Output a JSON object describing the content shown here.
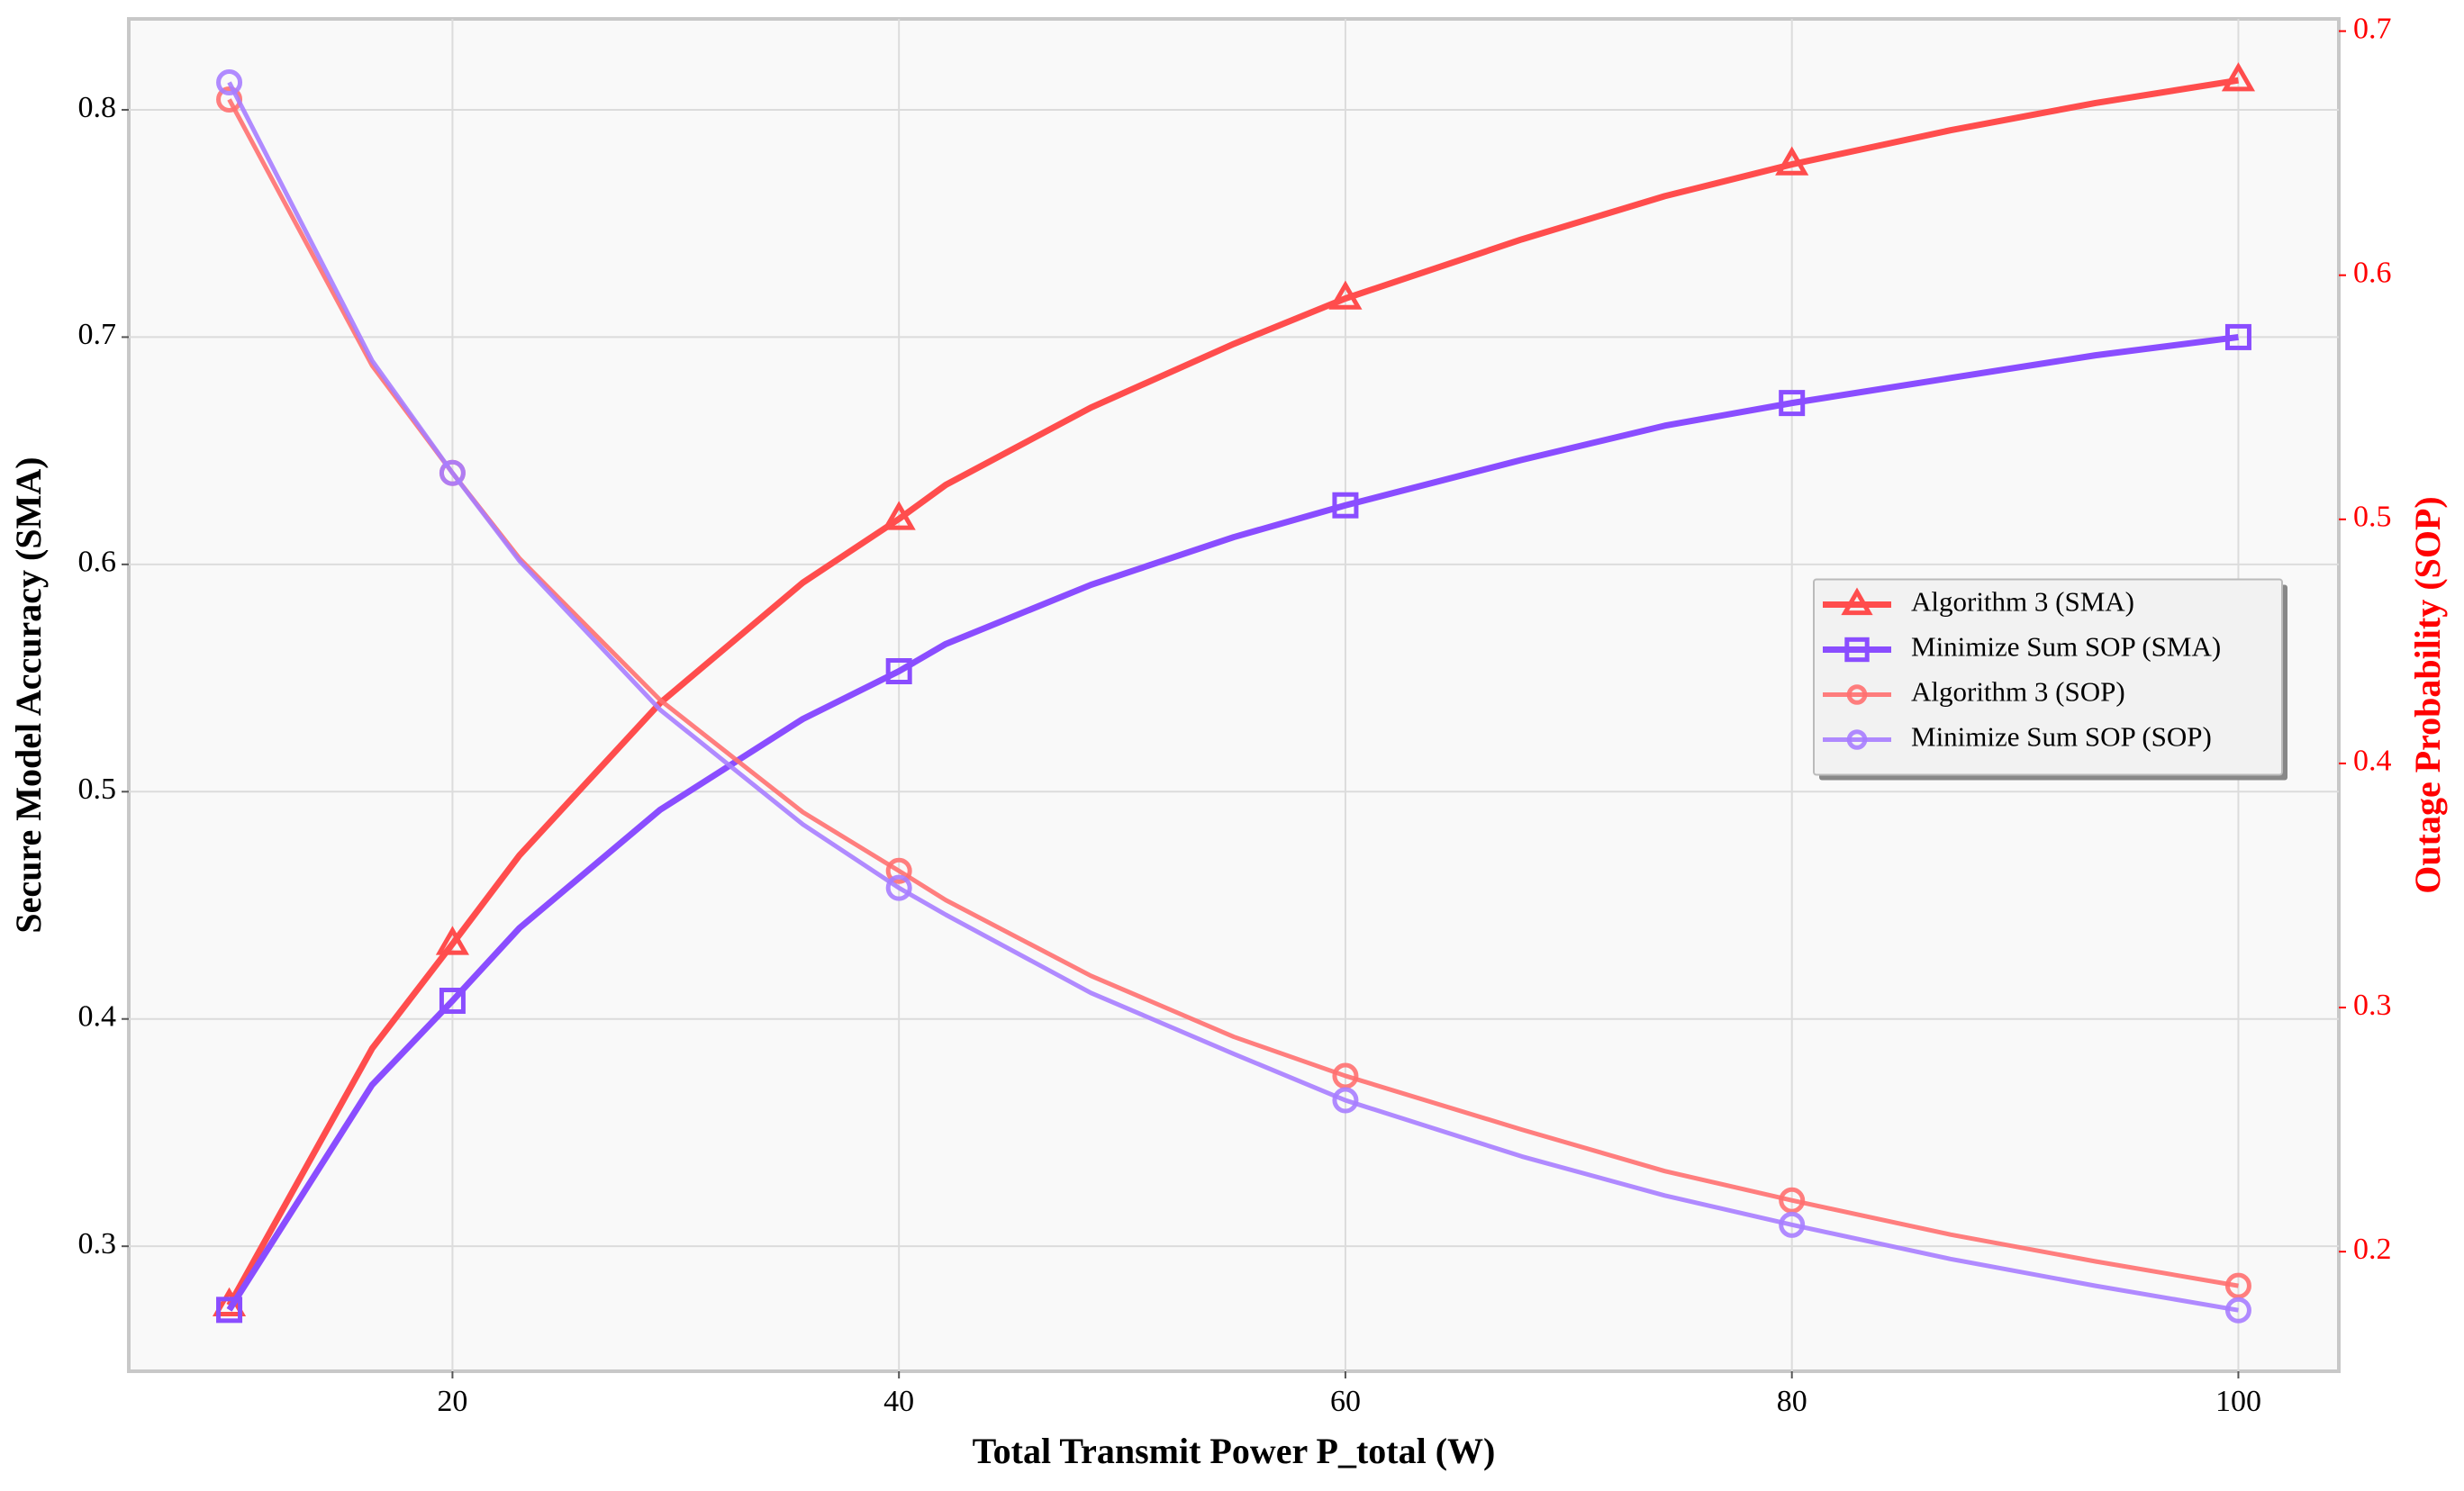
{
  "chart_data": {
    "type": "line",
    "xlabel": "Total Transmit Power P_total (W)",
    "ylabel": "Secure Model Accuracy (SMA)",
    "y2label": "Outage Probability (SOP)",
    "y2_color": "#ff0000",
    "x": [
      10,
      16.4,
      20,
      23,
      29.3,
      35.7,
      40,
      42.1,
      48.6,
      55,
      60,
      67.9,
      74.3,
      80,
      87.1,
      93.6,
      100
    ],
    "markevery": [
      0,
      2,
      6,
      10,
      13,
      16
    ],
    "xlim": [
      5.5,
      104.5
    ],
    "xticks": [
      20,
      40,
      60,
      80,
      100
    ],
    "ylim": [
      0.245,
      0.84
    ],
    "yticks": [
      0.3,
      0.4,
      0.5,
      0.6,
      0.7,
      0.8
    ],
    "y2lim": [
      0.151,
      0.705
    ],
    "y2ticks": [
      0.2,
      0.3,
      0.4,
      0.5,
      0.6,
      0.7
    ],
    "grid": true,
    "legend": "center right",
    "series": [
      {
        "name": "Algorithm 3 (SMA)",
        "color": "#ff4d4d",
        "marker": "triangle",
        "axis": "y",
        "values": [
          0.274,
          0.387,
          0.433,
          0.472,
          0.539,
          0.592,
          0.62,
          0.635,
          0.669,
          0.697,
          0.717,
          0.743,
          0.762,
          0.776,
          0.791,
          0.803,
          0.813
        ]
      },
      {
        "name": "Minimize Sum SOP (SMA)",
        "color": "#8a4dff",
        "marker": "square",
        "axis": "y",
        "values": [
          0.272,
          0.371,
          0.408,
          0.44,
          0.492,
          0.532,
          0.553,
          0.565,
          0.591,
          0.612,
          0.626,
          0.646,
          0.661,
          0.671,
          0.682,
          0.692,
          0.7
        ]
      },
      {
        "name": "Algorithm 3 (SOP)",
        "color": "#ff7070",
        "marker": "circle",
        "axis": "y2",
        "values": [
          0.672,
          0.563,
          0.519,
          0.484,
          0.426,
          0.38,
          0.356,
          0.344,
          0.313,
          0.288,
          0.272,
          0.25,
          0.233,
          0.221,
          0.207,
          0.196,
          0.186
        ]
      },
      {
        "name": "Minimize Sum SOP (SOP)",
        "color": "#a77dff",
        "marker": "circle",
        "axis": "y2",
        "values": [
          0.679,
          0.565,
          0.519,
          0.483,
          0.422,
          0.375,
          0.349,
          0.338,
          0.306,
          0.281,
          0.262,
          0.239,
          0.223,
          0.211,
          0.197,
          0.186,
          0.176
        ]
      }
    ]
  }
}
